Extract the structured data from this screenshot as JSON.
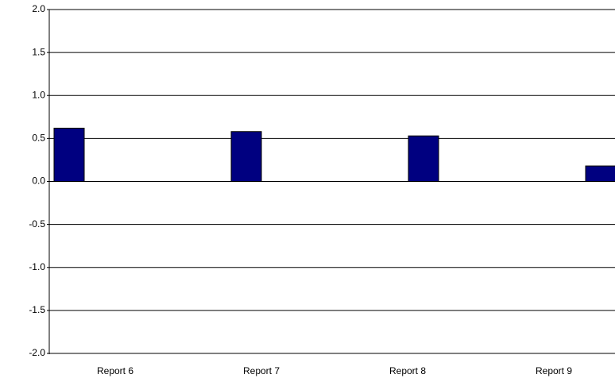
{
  "chart_data": {
    "type": "bar",
    "categories": [
      "Report 6",
      "Report 7",
      "Report 8",
      "Report 9"
    ],
    "values": [
      0.62,
      0.58,
      0.53,
      0.18
    ],
    "color": "#000080",
    "ylim": [
      -2,
      2
    ],
    "yticks": [
      {
        "value": 2,
        "label": "2.0"
      },
      {
        "value": 1.5,
        "label": "1.5"
      },
      {
        "value": 1,
        "label": "1.0"
      },
      {
        "value": 0.5,
        "label": "0.5"
      },
      {
        "value": 0,
        "label": "0.0"
      },
      {
        "value": -0.5,
        "label": "-0.5"
      },
      {
        "value": -1,
        "label": "-1.0"
      },
      {
        "value": -1.5,
        "label": "-1.5"
      },
      {
        "value": -2,
        "label": "-2.0"
      }
    ],
    "grid": true
  }
}
